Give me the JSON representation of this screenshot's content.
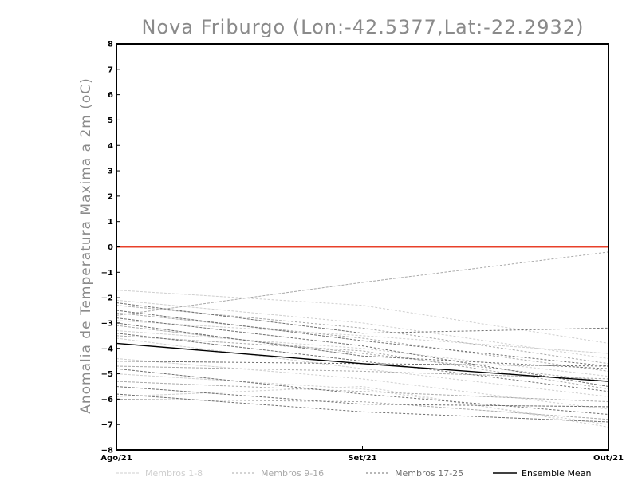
{
  "chart_data": {
    "type": "line",
    "title": "Nova Friburgo (Lon:-42.5377,Lat:-22.2932)",
    "xlabel": "",
    "ylabel": "Anomalia de Temperatura Maxima a 2m (oC)",
    "categories": [
      "Ago/21",
      "Set/21",
      "Out/21"
    ],
    "ylim": [
      -8,
      8
    ],
    "yticks": [
      -8,
      -7,
      -6,
      -5,
      -4,
      -3,
      -2,
      -1,
      0,
      1,
      2,
      3,
      4,
      5,
      6,
      7,
      8
    ],
    "reference_line": {
      "y": 0,
      "color": "#e8402a"
    },
    "grid": false,
    "legend_position": "bottom",
    "legend": [
      {
        "label": "Membros 1-8",
        "color": "#cfcfcf",
        "style": "dashed"
      },
      {
        "label": "Membros 9-16",
        "color": "#a9a9a9",
        "style": "dashed"
      },
      {
        "label": "Membros 17-25",
        "color": "#6f6f6f",
        "style": "dashed"
      },
      {
        "label": "Ensemble Mean",
        "color": "#000000",
        "style": "solid"
      }
    ],
    "series": [
      {
        "group": 0,
        "values": [
          -1.7,
          -2.3,
          -3.8
        ]
      },
      {
        "group": 0,
        "values": [
          -2.1,
          -3.0,
          -4.4
        ]
      },
      {
        "group": 0,
        "values": [
          -2.9,
          -3.5,
          -4.2
        ]
      },
      {
        "group": 0,
        "values": [
          -3.3,
          -4.0,
          -5.1
        ]
      },
      {
        "group": 0,
        "values": [
          -3.6,
          -4.8,
          -5.9
        ]
      },
      {
        "group": 0,
        "values": [
          -4.4,
          -5.2,
          -6.4
        ]
      },
      {
        "group": 0,
        "values": [
          -5.0,
          -5.6,
          -7.0
        ]
      },
      {
        "group": 0,
        "values": [
          -5.9,
          -5.5,
          -7.1
        ]
      },
      {
        "group": 1,
        "values": [
          -2.7,
          -1.4,
          -0.2
        ]
      },
      {
        "group": 1,
        "values": [
          -2.3,
          -3.2,
          -4.6
        ]
      },
      {
        "group": 1,
        "values": [
          -2.6,
          -3.6,
          -4.9
        ]
      },
      {
        "group": 1,
        "values": [
          -3.1,
          -4.2,
          -5.3
        ]
      },
      {
        "group": 1,
        "values": [
          -3.5,
          -4.1,
          -5.6
        ]
      },
      {
        "group": 1,
        "values": [
          -4.7,
          -4.9,
          -5.2
        ]
      },
      {
        "group": 1,
        "values": [
          -5.3,
          -5.7,
          -6.1
        ]
      },
      {
        "group": 1,
        "values": [
          -6.0,
          -6.1,
          -6.8
        ]
      },
      {
        "group": 2,
        "values": [
          -2.2,
          -3.4,
          -3.2
        ]
      },
      {
        "group": 2,
        "values": [
          -2.5,
          -3.7,
          -4.7
        ]
      },
      {
        "group": 2,
        "values": [
          -2.8,
          -3.9,
          -5.5
        ]
      },
      {
        "group": 2,
        "values": [
          -3.0,
          -4.3,
          -4.8
        ]
      },
      {
        "group": 2,
        "values": [
          -3.4,
          -4.5,
          -5.7
        ]
      },
      {
        "group": 2,
        "values": [
          -4.5,
          -4.6,
          -4.7
        ]
      },
      {
        "group": 2,
        "values": [
          -4.8,
          -5.8,
          -6.6
        ]
      },
      {
        "group": 2,
        "values": [
          -5.5,
          -6.2,
          -6.3
        ]
      },
      {
        "group": 2,
        "values": [
          -5.8,
          -6.5,
          -6.9
        ]
      },
      {
        "group": 3,
        "values": [
          -3.8,
          -4.6,
          -5.3
        ]
      }
    ]
  }
}
